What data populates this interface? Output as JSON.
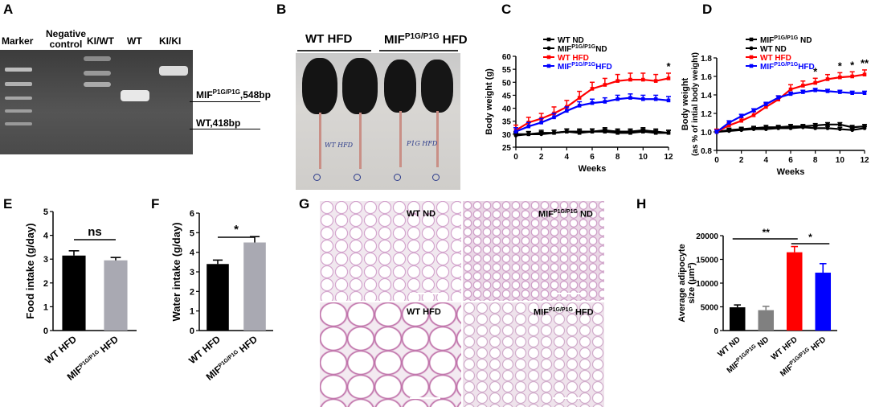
{
  "panels": {
    "A": {
      "label": "A",
      "lanes": [
        "Marker",
        "Negative control",
        "KI/WT",
        "WT",
        "KI/KI"
      ],
      "band_labels": [
        {
          "text": "MIF",
          "sup": "P1G/P1G",
          "tail": ",548bp"
        },
        {
          "text": "WT,418bp",
          "sup": "",
          "tail": ""
        }
      ]
    },
    "B": {
      "label": "B",
      "groups": [
        {
          "text": "WT HFD",
          "sup": "",
          "tail": ""
        },
        {
          "text": "MIF",
          "sup": "P1G/P1G",
          "tail": " HFD"
        }
      ],
      "tags": [
        "WT HFD",
        "P1G HFD"
      ]
    },
    "C": {
      "label": "C"
    },
    "D": {
      "label": "D"
    },
    "E": {
      "label": "E",
      "sig": "ns"
    },
    "F": {
      "label": "F",
      "sig": "*"
    },
    "G": {
      "label": "G",
      "tiles": [
        {
          "text": "WT ND",
          "sup": "",
          "tail": ""
        },
        {
          "text": "MIF",
          "sup": "P1G/P1G",
          "tail": " ND"
        },
        {
          "text": "WT HFD",
          "sup": "",
          "tail": ""
        },
        {
          "text": "MIF",
          "sup": "P1G/P1G",
          "tail": " HFD"
        }
      ]
    },
    "H": {
      "label": "H",
      "sig": [
        "**",
        "*"
      ]
    }
  },
  "chart_data": [
    {
      "id": "C",
      "type": "line",
      "xlabel": "Weeks",
      "ylabel": "Body weight (g)",
      "xlim": [
        0,
        12
      ],
      "ylim": [
        25,
        60
      ],
      "xticks": [
        0,
        2,
        4,
        6,
        8,
        10,
        12
      ],
      "yticks": [
        25,
        30,
        35,
        40,
        45,
        50,
        55,
        60
      ],
      "x": [
        0,
        1,
        2,
        3,
        4,
        5,
        6,
        7,
        8,
        9,
        10,
        11,
        12
      ],
      "legend_position": "top-left",
      "series": [
        {
          "name": "WT ND",
          "sup": "",
          "tail": "",
          "color": "#000000",
          "marker": "square",
          "values": [
            30,
            30,
            30.5,
            30.5,
            31,
            30.5,
            31,
            31,
            30.5,
            30.5,
            31,
            30.5,
            30.5
          ],
          "errors": [
            1,
            1,
            1,
            1,
            1,
            1,
            1,
            1,
            1,
            1,
            1,
            1,
            1
          ]
        },
        {
          "name": "MIF",
          "sup": "P1G/P1G",
          "tail": "ND",
          "color": "#000000",
          "marker": "circle",
          "values": [
            29.5,
            30,
            30,
            30.5,
            31,
            31,
            31,
            31.5,
            31,
            31,
            31.5,
            31,
            30.5
          ],
          "errors": [
            1,
            1,
            1,
            1,
            1,
            1,
            1,
            1,
            1,
            1,
            1,
            1,
            1
          ]
        },
        {
          "name": "WT HFD",
          "sup": "",
          "tail": "",
          "color": "#ff0000",
          "marker": "square",
          "values": [
            31.5,
            34.5,
            36,
            38,
            40.5,
            44,
            47.5,
            49,
            50.5,
            51,
            51,
            50.5,
            51.5
          ],
          "errors": [
            2,
            2,
            2,
            2.5,
            2.5,
            2.5,
            2.5,
            2.5,
            2.5,
            2.5,
            2.5,
            2.5,
            2
          ]
        },
        {
          "name": "MIF",
          "sup": "P1G/P1G",
          "tail": "HFD",
          "color": "#0000ff",
          "marker": "square",
          "values": [
            31,
            33,
            34.5,
            36.5,
            39,
            41,
            42,
            42.5,
            43.5,
            44,
            43.5,
            43.5,
            43
          ],
          "errors": [
            1.5,
            1.5,
            1.5,
            1.5,
            1.5,
            1.5,
            1.5,
            1.5,
            1.5,
            1.5,
            1.5,
            1.5,
            1.5
          ]
        }
      ],
      "annotations": [
        {
          "x": 12,
          "text": "*"
        }
      ]
    },
    {
      "id": "D",
      "type": "line",
      "xlabel": "Weeks",
      "ylabel": "Body weight",
      "ylabel2": "(as % of intial body weight)",
      "xlim": [
        0,
        12
      ],
      "ylim": [
        0.8,
        1.8
      ],
      "xticks": [
        0,
        2,
        4,
        6,
        8,
        10,
        12
      ],
      "yticks": [
        0.8,
        1.0,
        1.2,
        1.4,
        1.6,
        1.8
      ],
      "ytick_labels": [
        "0.8",
        "1.0",
        "1.2",
        "1.4",
        "1.6",
        "1.8"
      ],
      "x": [
        0,
        1,
        2,
        3,
        4,
        5,
        6,
        7,
        8,
        9,
        10,
        11,
        12
      ],
      "legend_position": "top-left",
      "series": [
        {
          "name": "MIF",
          "sup": "P1G/P1G",
          "tail": " ND",
          "color": "#000000",
          "marker": "square",
          "values": [
            1.0,
            1.02,
            1.03,
            1.04,
            1.05,
            1.05,
            1.06,
            1.06,
            1.07,
            1.08,
            1.08,
            1.05,
            1.06
          ],
          "errors": [
            0.02,
            0.02,
            0.02,
            0.02,
            0.02,
            0.02,
            0.02,
            0.02,
            0.02,
            0.02,
            0.02,
            0.02,
            0.02
          ]
        },
        {
          "name": "WT ND",
          "sup": "",
          "tail": "",
          "color": "#000000",
          "marker": "circle",
          "values": [
            1.0,
            1.01,
            1.02,
            1.03,
            1.03,
            1.04,
            1.04,
            1.05,
            1.04,
            1.04,
            1.03,
            1.02,
            1.04
          ],
          "errors": [
            0.02,
            0.02,
            0.02,
            0.02,
            0.02,
            0.02,
            0.02,
            0.02,
            0.02,
            0.02,
            0.02,
            0.02,
            0.02
          ]
        },
        {
          "name": "WT HFD",
          "sup": "",
          "tail": "",
          "color": "#ff0000",
          "marker": "square",
          "values": [
            1.0,
            1.07,
            1.12,
            1.18,
            1.27,
            1.35,
            1.46,
            1.5,
            1.53,
            1.57,
            1.59,
            1.6,
            1.62
          ],
          "errors": [
            0.03,
            0.03,
            0.03,
            0.04,
            0.04,
            0.04,
            0.05,
            0.05,
            0.05,
            0.05,
            0.05,
            0.05,
            0.05
          ]
        },
        {
          "name": "MIF",
          "sup": "P1G/P1G",
          "tail": "HFD",
          "color": "#0000ff",
          "marker": "square",
          "values": [
            1.0,
            1.1,
            1.17,
            1.23,
            1.3,
            1.37,
            1.41,
            1.43,
            1.45,
            1.44,
            1.43,
            1.42,
            1.42
          ],
          "errors": [
            0.02,
            0.02,
            0.02,
            0.02,
            0.02,
            0.02,
            0.02,
            0.02,
            0.02,
            0.02,
            0.02,
            0.02,
            0.02
          ]
        }
      ],
      "annotations": [
        {
          "x": 8,
          "text": "*"
        },
        {
          "x": 10,
          "text": "*"
        },
        {
          "x": 11,
          "text": "*"
        },
        {
          "x": 12,
          "text": "**"
        }
      ]
    },
    {
      "id": "E",
      "type": "bar",
      "ylabel": "Food intake (g/day)",
      "ylim": [
        0,
        5
      ],
      "yticks": [
        0,
        1,
        2,
        3,
        4,
        5
      ],
      "categories": [
        {
          "text": "WT HFD",
          "sup": "",
          "tail": ""
        },
        {
          "text": "MIF",
          "sup": "P1G/P1G",
          "tail": " HFD"
        }
      ],
      "values": [
        3.15,
        2.95
      ],
      "errors": [
        0.2,
        0.12
      ],
      "colors": [
        "#000000",
        "#a9a9b2"
      ]
    },
    {
      "id": "F",
      "type": "bar",
      "ylabel": "Water intake (g/day)",
      "ylim": [
        0,
        6
      ],
      "yticks": [
        0,
        1,
        2,
        3,
        4,
        5,
        6
      ],
      "categories": [
        {
          "text": "WT HFD",
          "sup": "",
          "tail": ""
        },
        {
          "text": "MIF",
          "sup": "P1G/P1G",
          "tail": " HFD"
        }
      ],
      "values": [
        3.4,
        4.5
      ],
      "errors": [
        0.2,
        0.3
      ],
      "colors": [
        "#000000",
        "#a9a9b2"
      ]
    },
    {
      "id": "H",
      "type": "bar",
      "ylabel": "Average adipocyte",
      "ylabel2": "size (μm²)",
      "ylim": [
        0,
        20000
      ],
      "yticks": [
        0,
        5000,
        10000,
        15000,
        20000
      ],
      "categories": [
        {
          "text": "WT ND",
          "sup": "",
          "tail": ""
        },
        {
          "text": "MIF",
          "sup": "P1G/P1G",
          "tail": " ND"
        },
        {
          "text": "WT HFD",
          "sup": "",
          "tail": ""
        },
        {
          "text": "MIF",
          "sup": "P1G/P1G",
          "tail": " HFD"
        }
      ],
      "values": [
        4900,
        4300,
        16500,
        12200
      ],
      "errors": [
        500,
        800,
        1200,
        1900
      ],
      "colors": [
        "#000000",
        "#808080",
        "#ff0000",
        "#0000ff"
      ]
    }
  ]
}
